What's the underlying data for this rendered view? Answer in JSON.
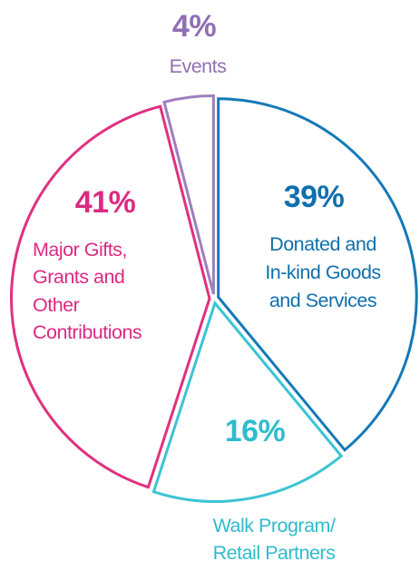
{
  "chart_data": {
    "type": "pie",
    "title": "",
    "slices": [
      {
        "label": "Donated and In-kind Goods and Services",
        "percent_label": "39%",
        "value": 39,
        "color": "#1479b8"
      },
      {
        "label": "Walk Program/ Retail Partners",
        "percent_label": "16%",
        "value": 16,
        "color": "#3bc4d4"
      },
      {
        "label": "Major Gifts, Grants and Other Contributions",
        "percent_label": "41%",
        "value": 41,
        "color": "#e0317f"
      },
      {
        "label": "Events",
        "percent_label": "4%",
        "value": 4,
        "color": "#9e7fbe"
      }
    ]
  },
  "labels": {
    "donated": {
      "pct": "39%",
      "lines": [
        "Donated and",
        "In-kind Goods",
        "and Services"
      ]
    },
    "walk": {
      "pct": "16%",
      "lines": [
        "Walk Program/",
        "Retail Partners"
      ]
    },
    "major": {
      "pct": "41%",
      "lines": [
        "Major Gifts,",
        "Grants and",
        "Other",
        "Contributions"
      ]
    },
    "events": {
      "pct": "4%",
      "lines": [
        "Events"
      ]
    }
  }
}
